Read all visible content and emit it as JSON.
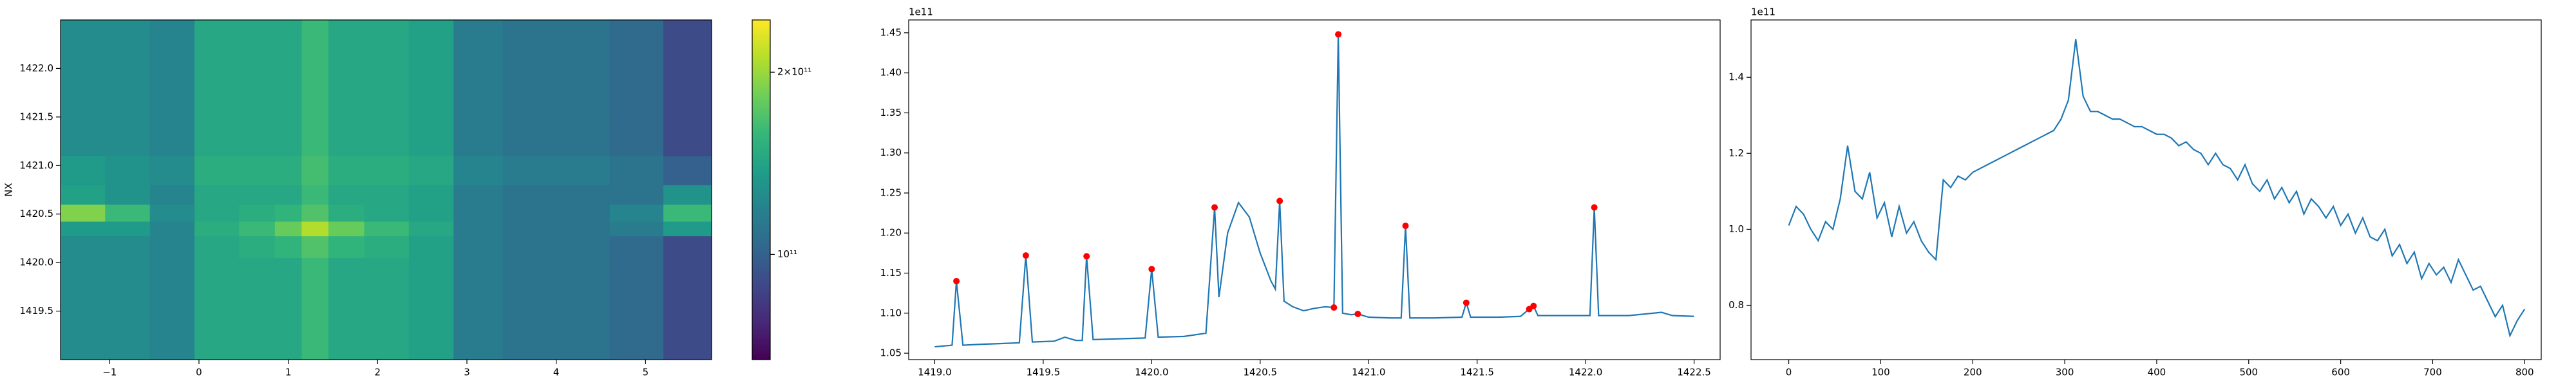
{
  "chart_data": [
    {
      "type": "heatmap",
      "ylabel": "NX",
      "x": [
        -1.3,
        -0.8,
        -0.3,
        0.2,
        0.7,
        1.0,
        1.3,
        1.6,
        2.1,
        2.6,
        3.1,
        3.7,
        4.3,
        4.9,
        5.5
      ],
      "y": [
        1419.2,
        1419.55,
        1419.9,
        1420.2,
        1420.35,
        1420.5,
        1420.7,
        1420.9,
        1421.3,
        1421.8,
        1422.3
      ],
      "z": [
        [
          125000000000.0,
          125000000000.0,
          120000000000.0,
          145000000000.0,
          145000000000.0,
          145000000000.0,
          160000000000.0,
          145000000000.0,
          145000000000.0,
          140000000000.0,
          115000000000.0,
          110000000000.0,
          110000000000.0,
          105000000000.0,
          90000000000.0
        ],
        [
          125000000000.0,
          125000000000.0,
          120000000000.0,
          145000000000.0,
          145000000000.0,
          145000000000.0,
          160000000000.0,
          145000000000.0,
          145000000000.0,
          140000000000.0,
          115000000000.0,
          110000000000.0,
          110000000000.0,
          105000000000.0,
          90000000000.0
        ],
        [
          125000000000.0,
          125000000000.0,
          120000000000.0,
          145000000000.0,
          145000000000.0,
          145000000000.0,
          160000000000.0,
          145000000000.0,
          145000000000.0,
          140000000000.0,
          115000000000.0,
          110000000000.0,
          110000000000.0,
          105000000000.0,
          90000000000.0
        ],
        [
          125000000000.0,
          125000000000.0,
          120000000000.0,
          145000000000.0,
          150000000000.0,
          155000000000.0,
          170000000000.0,
          155000000000.0,
          150000000000.0,
          140000000000.0,
          115000000000.0,
          110000000000.0,
          110000000000.0,
          105000000000.0,
          90000000000.0
        ],
        [
          135000000000.0,
          135000000000.0,
          120000000000.0,
          150000000000.0,
          160000000000.0,
          180000000000.0,
          210000000000.0,
          180000000000.0,
          160000000000.0,
          145000000000.0,
          115000000000.0,
          110000000000.0,
          110000000000.0,
          115000000000.0,
          135000000000.0
        ],
        [
          190000000000.0,
          160000000000.0,
          125000000000.0,
          145000000000.0,
          150000000000.0,
          155000000000.0,
          170000000000.0,
          150000000000.0,
          145000000000.0,
          140000000000.0,
          115000000000.0,
          110000000000.0,
          110000000000.0,
          120000000000.0,
          160000000000.0
        ],
        [
          140000000000.0,
          130000000000.0,
          120000000000.0,
          145000000000.0,
          145000000000.0,
          145000000000.0,
          160000000000.0,
          145000000000.0,
          145000000000.0,
          140000000000.0,
          115000000000.0,
          110000000000.0,
          110000000000.0,
          110000000000.0,
          130000000000.0
        ],
        [
          135000000000.0,
          130000000000.0,
          125000000000.0,
          150000000000.0,
          150000000000.0,
          150000000000.0,
          165000000000.0,
          150000000000.0,
          150000000000.0,
          145000000000.0,
          120000000000.0,
          115000000000.0,
          115000000000.0,
          110000000000.0,
          100000000000.0
        ],
        [
          125000000000.0,
          125000000000.0,
          120000000000.0,
          145000000000.0,
          145000000000.0,
          145000000000.0,
          160000000000.0,
          145000000000.0,
          145000000000.0,
          140000000000.0,
          115000000000.0,
          110000000000.0,
          110000000000.0,
          105000000000.0,
          90000000000.0
        ],
        [
          125000000000.0,
          125000000000.0,
          120000000000.0,
          145000000000.0,
          145000000000.0,
          145000000000.0,
          160000000000.0,
          145000000000.0,
          145000000000.0,
          140000000000.0,
          115000000000.0,
          110000000000.0,
          110000000000.0,
          105000000000.0,
          90000000000.0
        ],
        [
          125000000000.0,
          125000000000.0,
          120000000000.0,
          145000000000.0,
          145000000000.0,
          145000000000.0,
          160000000000.0,
          145000000000.0,
          145000000000.0,
          140000000000.0,
          115000000000.0,
          110000000000.0,
          110000000000.0,
          105000000000.0,
          90000000000.0
        ]
      ],
      "xlim": [
        -1.55,
        5.74
      ],
      "ylim": [
        1419.0,
        1422.5
      ],
      "xticks": [
        {
          "value": -1,
          "label": "−1"
        },
        0,
        1,
        2,
        3,
        4,
        5
      ],
      "yticks": [
        1419.5,
        {
          "value": 1420,
          "label": "1420.0"
        },
        1420.5,
        {
          "value": 1421,
          "label": "1421.0"
        },
        1421.5,
        {
          "value": 1422,
          "label": "1422.0"
        }
      ],
      "colorbar": {
        "log": true,
        "lim": [
          67000000000.0,
          244000000000.0
        ],
        "ticks": [
          {
            "value": 200000000000.0,
            "label": "2×10¹¹"
          },
          {
            "value": 100000000000.0,
            "label": "10¹¹"
          }
        ]
      }
    },
    {
      "type": "line",
      "color": "#1f77b4",
      "y_offset_label": "1e11",
      "x": [
        1419.0,
        1419.08,
        1419.1,
        1419.13,
        1419.2,
        1419.3,
        1419.39,
        1419.42,
        1419.45,
        1419.55,
        1419.6,
        1419.65,
        1419.68,
        1419.7,
        1419.73,
        1419.85,
        1419.97,
        1420.0,
        1420.03,
        1420.15,
        1420.25,
        1420.29,
        1420.31,
        1420.35,
        1420.4,
        1420.45,
        1420.5,
        1420.55,
        1420.57,
        1420.59,
        1420.61,
        1420.65,
        1420.7,
        1420.75,
        1420.8,
        1420.84,
        1420.86,
        1420.88,
        1420.92,
        1420.95,
        1421.0,
        1421.1,
        1421.15,
        1421.17,
        1421.19,
        1421.3,
        1421.43,
        1421.45,
        1421.47,
        1421.6,
        1421.7,
        1421.74,
        1421.76,
        1421.78,
        1421.9,
        1422.02,
        1422.04,
        1422.06,
        1422.2,
        1422.35,
        1422.4,
        1422.5
      ],
      "values": [
        1.058,
        1.06,
        1.14,
        1.06,
        1.061,
        1.062,
        1.063,
        1.172,
        1.064,
        1.065,
        1.07,
        1.066,
        1.066,
        1.171,
        1.067,
        1.068,
        1.069,
        1.155,
        1.07,
        1.071,
        1.075,
        1.232,
        1.12,
        1.2,
        1.238,
        1.22,
        1.175,
        1.14,
        1.13,
        1.24,
        1.115,
        1.108,
        1.103,
        1.106,
        1.108,
        1.107,
        1.448,
        1.1,
        1.098,
        1.099,
        1.095,
        1.094,
        1.094,
        1.209,
        1.094,
        1.094,
        1.095,
        1.113,
        1.095,
        1.095,
        1.096,
        1.105,
        1.109,
        1.097,
        1.097,
        1.097,
        1.232,
        1.097,
        1.097,
        1.101,
        1.097,
        1.096
      ],
      "peaks": {
        "color": "#ff0000",
        "x": [
          1419.1,
          1419.42,
          1419.7,
          1420.0,
          1420.29,
          1420.59,
          1420.84,
          1420.86,
          1420.95,
          1421.17,
          1421.45,
          1421.74,
          1421.76,
          1422.04
        ],
        "values": [
          1.14,
          1.172,
          1.171,
          1.155,
          1.232,
          1.24,
          1.107,
          1.448,
          1.099,
          1.209,
          1.113,
          1.105,
          1.109,
          1.232
        ]
      },
      "xlim": [
        1418.88,
        1422.62
      ],
      "ylim": [
        1.042,
        1.466
      ],
      "xticks": [
        {
          "value": 1419,
          "label": "1419.0"
        },
        1419.5,
        {
          "value": 1420,
          "label": "1420.0"
        },
        1420.5,
        {
          "value": 1421,
          "label": "1421.0"
        },
        1421.5,
        {
          "value": 1422,
          "label": "1422.0"
        },
        1422.5
      ],
      "yticks": [
        1.05,
        {
          "value": 1.1,
          "label": "1.10"
        },
        1.15,
        {
          "value": 1.2,
          "label": "1.20"
        },
        1.25,
        {
          "value": 1.3,
          "label": "1.30"
        },
        1.35,
        {
          "value": 1.4,
          "label": "1.40"
        },
        1.45
      ]
    },
    {
      "type": "line",
      "color": "#1f77b4",
      "y_offset_label": "1e11",
      "x": [
        0,
        8,
        16,
        24,
        32,
        40,
        48,
        56,
        64,
        72,
        80,
        88,
        96,
        104,
        112,
        120,
        128,
        136,
        144,
        152,
        160,
        168,
        176,
        184,
        192,
        200,
        208,
        216,
        224,
        232,
        240,
        248,
        256,
        264,
        272,
        280,
        288,
        296,
        304,
        312,
        320,
        328,
        336,
        344,
        352,
        360,
        368,
        376,
        384,
        392,
        400,
        408,
        416,
        424,
        432,
        440,
        448,
        456,
        464,
        472,
        480,
        488,
        496,
        504,
        512,
        520,
        528,
        536,
        544,
        552,
        560,
        568,
        576,
        584,
        592,
        600,
        608,
        616,
        624,
        632,
        640,
        648,
        656,
        664,
        672,
        680,
        688,
        696,
        704,
        712,
        720,
        728,
        736,
        744,
        752,
        760,
        768,
        776,
        784,
        792,
        800
      ],
      "values": [
        1.01,
        1.06,
        1.04,
        1.0,
        0.97,
        1.02,
        1.0,
        1.08,
        1.22,
        1.1,
        1.08,
        1.15,
        1.03,
        1.07,
        0.98,
        1.06,
        0.99,
        1.02,
        0.97,
        0.94,
        0.92,
        1.13,
        1.11,
        1.14,
        1.13,
        1.15,
        1.16,
        1.17,
        1.18,
        1.19,
        1.2,
        1.21,
        1.22,
        1.23,
        1.24,
        1.25,
        1.26,
        1.29,
        1.34,
        1.5,
        1.35,
        1.31,
        1.31,
        1.3,
        1.29,
        1.29,
        1.28,
        1.27,
        1.27,
        1.26,
        1.25,
        1.25,
        1.24,
        1.22,
        1.23,
        1.21,
        1.2,
        1.17,
        1.2,
        1.17,
        1.16,
        1.13,
        1.17,
        1.12,
        1.1,
        1.13,
        1.08,
        1.11,
        1.07,
        1.1,
        1.04,
        1.08,
        1.06,
        1.03,
        1.06,
        1.01,
        1.04,
        0.99,
        1.03,
        0.98,
        0.97,
        1.0,
        0.93,
        0.96,
        0.91,
        0.94,
        0.87,
        0.91,
        0.88,
        0.9,
        0.86,
        0.92,
        0.88,
        0.84,
        0.85,
        0.81,
        0.77,
        0.8,
        0.72,
        0.76,
        0.79
      ],
      "xlim": [
        -41,
        818
      ],
      "ylim": [
        0.657,
        1.551
      ],
      "xticks": [
        0,
        100,
        200,
        300,
        400,
        500,
        600,
        700,
        800
      ],
      "yticks": [
        0.8,
        {
          "value": 1,
          "label": "1.0"
        },
        1.2,
        1.4
      ]
    }
  ]
}
